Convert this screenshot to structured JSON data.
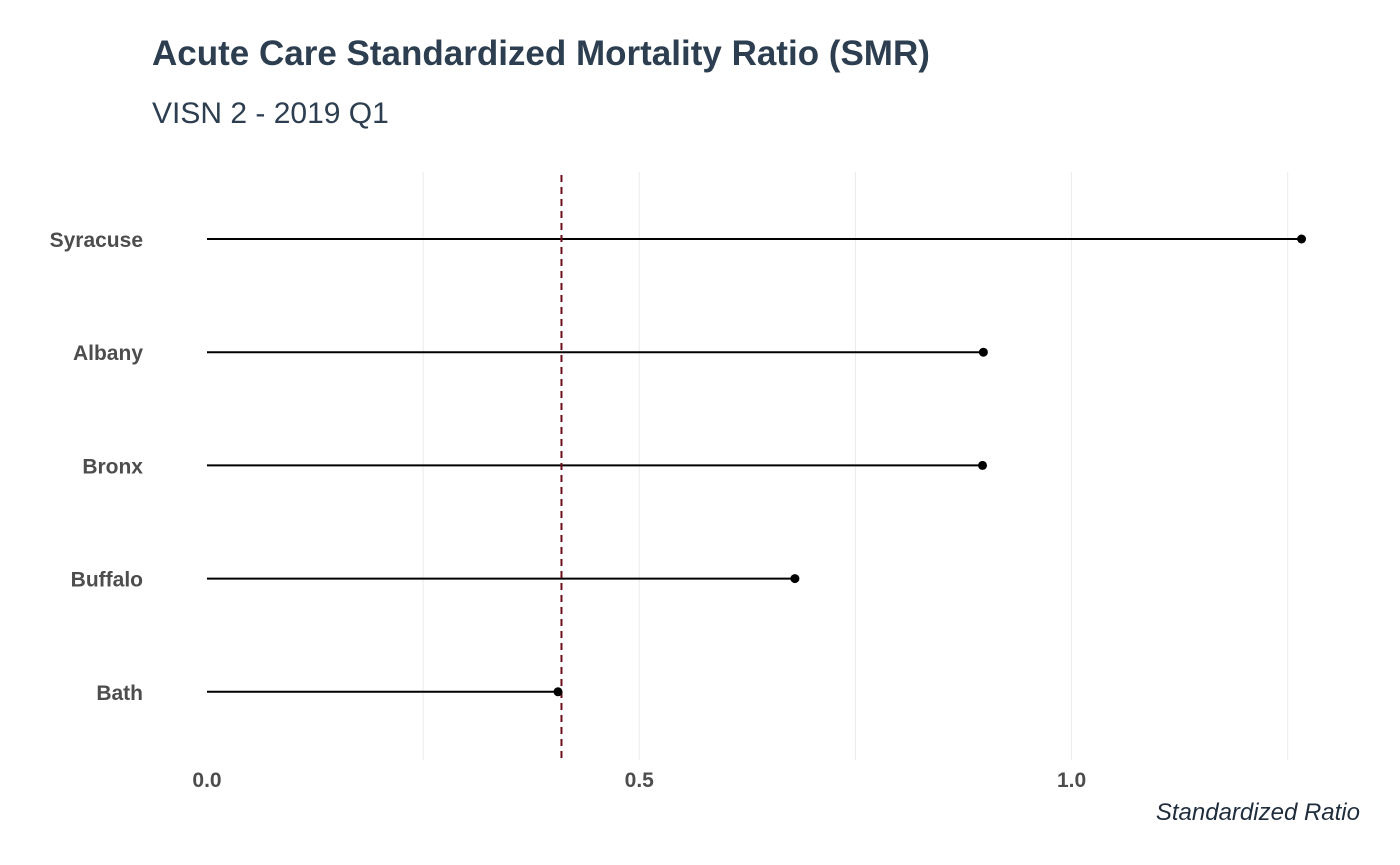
{
  "title": "Acute Care Standardized Mortality Ratio (SMR)",
  "subtitle": "VISN 2 - 2019 Q1",
  "chart_data": {
    "type": "lollipop",
    "title": "Acute Care Standardized Mortality Ratio (SMR)",
    "subtitle": "VISN 2 - 2019 Q1",
    "xlabel": "Standardized Ratio",
    "ylabel": "",
    "categories": [
      "Syracuse",
      "Albany",
      "Bronx",
      "Buffalo",
      "Bath"
    ],
    "values": [
      1.266,
      0.898,
      0.897,
      0.68,
      0.406
    ],
    "reference_line": {
      "value": 0.41,
      "style": "dashed",
      "color": "#6b0f1a"
    },
    "xlim": [
      0.0,
      1.27
    ],
    "x_ticks": [
      0.0,
      0.5,
      1.0
    ],
    "x_tick_labels": [
      "0.0",
      "0.5",
      "1.0"
    ],
    "grid": "vertical major and minor",
    "legend": "none",
    "colors": {
      "stick": "#000000",
      "point": "#000000",
      "text": "#2c3e50",
      "grid": "#ebebeb"
    }
  }
}
